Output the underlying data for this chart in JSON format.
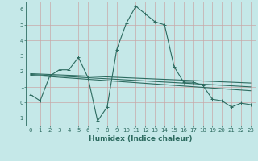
{
  "xlabel": "Humidex (Indice chaleur)",
  "ylabel": "",
  "background_color": "#c5e8e8",
  "grid_color": "#c8a8a8",
  "line_color": "#2d6b60",
  "xlim": [
    -0.5,
    23.5
  ],
  "ylim": [
    -1.5,
    6.5
  ],
  "yticks": [
    -1,
    0,
    1,
    2,
    3,
    4,
    5,
    6
  ],
  "xticks": [
    0,
    1,
    2,
    3,
    4,
    5,
    6,
    7,
    8,
    9,
    10,
    11,
    12,
    13,
    14,
    15,
    16,
    17,
    18,
    19,
    20,
    21,
    22,
    23
  ],
  "series_main": {
    "x": [
      0,
      1,
      2,
      3,
      4,
      5,
      6,
      7,
      8,
      9,
      10,
      11,
      12,
      13,
      14,
      15,
      16,
      17,
      18,
      19,
      20,
      21,
      22,
      23
    ],
    "y": [
      0.5,
      0.1,
      1.7,
      2.1,
      2.1,
      2.9,
      1.6,
      -1.2,
      -0.3,
      3.4,
      5.1,
      6.2,
      5.7,
      5.2,
      5.0,
      2.3,
      1.3,
      1.3,
      1.1,
      0.2,
      0.1,
      -0.3,
      -0.05,
      -0.15
    ]
  },
  "trend_lines": [
    {
      "x": [
        0,
        23
      ],
      "y": [
        1.85,
        1.25
      ]
    },
    {
      "x": [
        0,
        23
      ],
      "y": [
        1.8,
        1.0
      ]
    },
    {
      "x": [
        0,
        23
      ],
      "y": [
        1.75,
        0.75
      ]
    }
  ]
}
